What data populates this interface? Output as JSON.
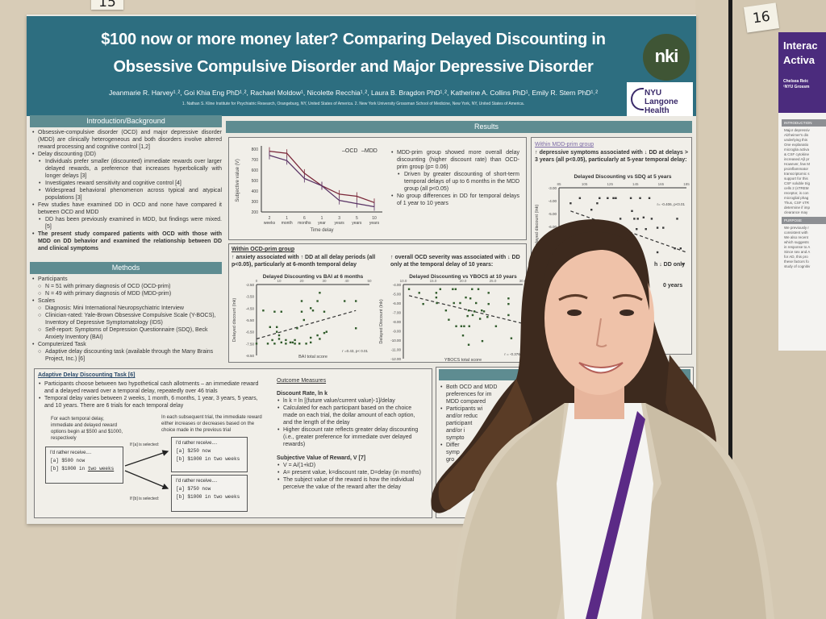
{
  "wall": {
    "tag_left": "15",
    "tag_right": "16"
  },
  "poster": {
    "title_line1": "$100 now or more money later? Comparing Delayed Discounting in",
    "title_line2": "Obsessive Compulsive Disorder and Major Depressive Disorder",
    "authors": "Jeanmarie R. Harvey¹˒², Goi Khia Eng PhD¹˒², Rachael Moldow¹, Nicolette Recchia¹˒², Laura B. Bragdon PhD¹˒², Katherine A. Collins PhD¹, Emily R. Stern PhD¹˒²",
    "affiliations": "1. Nathan S. Kline Institute for Psychiatric Research, Orangeburg, NY, United States of America. 2. New York University Grossman School of Medicine, New York, NY, United States of America.",
    "logo_nki": "nki",
    "logo_nyu": "NYU Langone Health",
    "intro": {
      "header": "Introduction/Background",
      "items": [
        {
          "l": 1,
          "t": "Obsessive-compulsive disorder (OCD) and major depressive disorder (MDD) are clinically heterogeneous and both disorders involve altered reward processing and cognitive control [1,2]"
        },
        {
          "l": 1,
          "t": "Delay discounting (DD)"
        },
        {
          "l": 2,
          "t": "Individuals prefer smaller (discounted) immediate rewards over larger delayed rewards, a preference that increases hyperbolically with longer delays [3]"
        },
        {
          "l": 2,
          "t": "Investigates reward sensitivity and cognitive control [4]"
        },
        {
          "l": 2,
          "t": "Widespread behavioral phenomenon across typical and atypical populations [3]"
        },
        {
          "l": 1,
          "t": "Few studies have examined DD in OCD and none have compared it between OCD and MDD"
        },
        {
          "l": 2,
          "t": "DD has been previously examined in MDD, but findings were mixed. [5]"
        },
        {
          "l": 1,
          "b": true,
          "t": "The present study compared patients with OCD with those with MDD on DD behavior and examined the relationship between DD and clinical symptoms"
        }
      ]
    },
    "methods": {
      "header": "Methods",
      "items": [
        {
          "l": 1,
          "t": "Participants"
        },
        {
          "l": 3,
          "t": "N = 51 with primary diagnosis of OCD (OCD-prim)"
        },
        {
          "l": 3,
          "t": "N = 49 with primary diagnosis of MDD (MDD-prim)"
        },
        {
          "l": 1,
          "t": "Scales"
        },
        {
          "l": 3,
          "t": "Diagnosis: Mini International Neuropsychiatric Interview"
        },
        {
          "l": 3,
          "t": "Clinician-rated: Yale-Brown Obsessive Compulsive Scale (Y-BOCS), Inventory of Depressive Symptomatology (IDS)"
        },
        {
          "l": 3,
          "t": "Self-report: Symptoms of Depression Questionnaire (SDQ), Beck Anxiety Inventory (BAI)"
        },
        {
          "l": 1,
          "t": "Computerized Task"
        },
        {
          "l": 3,
          "t": "Adaptive delay discounting task (available through the Many Brains Project, Inc.) [6]"
        }
      ]
    },
    "results": {
      "header": "Results",
      "summary": [
        {
          "l": 1,
          "t": "MDD-prim group showed more overall delay discounting (higher discount rate) than OCD-prim group (p= 0.06)"
        },
        {
          "l": 2,
          "t": "Driven by greater discounting of short-term temporal delays of up to 6 months in the MDD group (all p<0.05)"
        },
        {
          "l": 1,
          "t": "No group differences in DD for temporal delays of 1 year to 10 years"
        }
      ],
      "ocd_heading": "Within OCD-prim group",
      "ocd_left": "↑ anxiety associated with ↑ DD at all delay periods (all p<0.05), particularly at 6-month temporal delay",
      "ocd_right": "↑ overall OCD severity was associated with ↓ DD only at the temporal delay of 10 years:",
      "mdd_heading": "Within MDD-prim group",
      "mdd_text": "↑ depressive symptoms associated with ↓ DD at delays > 3 years (all p<0.05), particularly at 5-year temporal delay:",
      "mdd_fragment1": "h ↓ DD only",
      "mdd_fragment2": "0 years"
    },
    "task": {
      "heading": "Adaptive Delay Discounting Task [6]",
      "bullets": [
        {
          "l": 1,
          "t": "Participants choose between two hypothetical cash allotments – an immediate reward and a delayed reward over a temporal delay, repeatedly over 46 trials"
        },
        {
          "l": 1,
          "t": "Temporal delay varies between 2 weeks, 1 month, 6 months, 1 year, 3 years, 5 years, and 10 years. There are 6 trials for each temporal delay"
        }
      ],
      "note_left": "For each temporal delay, immediate and delayed reward options begin at $500 and $1000, respectively",
      "note_right": "In each subsequent trial, the immediate reward either increases or decreases based on the choice made in the previous trial",
      "if_a": "If [a] is selected:",
      "if_b": "If [b] is selected:",
      "prompt": "I'd rather receive....",
      "box1": {
        "a": "[a] $500 now",
        "b_pre": "[b] $1000 in ",
        "b_u": "two weeks"
      },
      "box2": {
        "a": "[a] $250 now",
        "b": "[b] $1000 in two weeks"
      },
      "box3": {
        "a": "[a] $750 now",
        "b": "[b] $1000 in two weeks"
      },
      "outcome_heading": "Outcome Measures",
      "dr_heading": "Discount Rate, ln k",
      "dr_items": [
        {
          "l": 1,
          "t": "ln k = ln [(future value/current value)-1]/delay"
        },
        {
          "l": 1,
          "t": "Calculated for each participant based on the choice made on each trial, the dollar amount of each option, and the length of the delay"
        },
        {
          "l": 1,
          "t": "Higher discount rate reflects greater delay discounting (i.e., greater preference for immediate over delayed rewards)"
        }
      ],
      "sv_heading": "Subjective Value of Reward, V [7]",
      "sv_items": [
        {
          "l": 1,
          "t": "V = A/(1+kD)"
        },
        {
          "l": 1,
          "t": "A= present value, k=discount rate, D=delay (in months)"
        },
        {
          "l": 1,
          "t": "The subject value of the reward is how the individual perceive the value of the reward after the delay"
        }
      ]
    },
    "conclusions_visible": [
      {
        "l": 1,
        "t": "Both OCD and MDD"
      },
      {
        "l": 0,
        "t": "preferences for im"
      },
      {
        "l": 0,
        "t": "MDD compared"
      },
      {
        "l": 1,
        "t": "Participants wi"
      },
      {
        "l": 0,
        "t": "and/or reduc"
      },
      {
        "l": 0,
        "t": "participant"
      },
      {
        "l": 0,
        "t": "and/or i"
      },
      {
        "l": 0,
        "t": "sympto"
      },
      {
        "l": 1,
        "t": "Differ"
      },
      {
        "l": 0,
        "t": "symp"
      },
      {
        "l": 0,
        "t": "gro"
      }
    ]
  },
  "neighbor_poster": {
    "title1": "Interac",
    "title2": "Activa",
    "author": "Chelsea Reic",
    "affil": "¹NYU Grossm",
    "sec1": "INTRODUCTION",
    "sec2": "PURPOSE",
    "lines1": [
      "Major depressiv",
      "Alzheimer's dis",
      "underlying this",
      "One explanatio",
      "microglia activa",
      "& CSF cytokine",
      "increased Aβ pr",
      "However, few M",
      "proinflammator",
      "transcriptomic s",
      "support for this",
      "CSF soluble trig",
      "cells 2 (sTREM",
      "receptor, is con",
      "microglial phag",
      "Thus, CSF sTR",
      "determine if imp",
      "clearance may"
    ],
    "lines2": [
      "We previously r",
      "consistent with",
      "We also recent",
      "which suggests",
      "in response to A",
      "Since sex and A",
      "for AD, this pro",
      "these factors fo",
      "study of cognitiv"
    ]
  },
  "chart_data": [
    {
      "type": "line",
      "title": "",
      "xlabel": "Time delay",
      "ylabel": "Subjective value (V)",
      "categories": [
        "2 weeks",
        "1 month",
        "6 months",
        "1 year",
        "3 years",
        "5 years",
        "10 years"
      ],
      "ylim": [
        200,
        800
      ],
      "yticks": [
        200,
        300,
        400,
        500,
        600,
        700,
        800
      ],
      "legend": "top-right",
      "series": [
        {
          "name": "OCD",
          "color": "#7a2638",
          "values": [
            780,
            760,
            570,
            450,
            370,
            350,
            290
          ]
        },
        {
          "name": "MDD",
          "color": "#5b3566",
          "values": [
            740,
            690,
            520,
            450,
            310,
            280,
            250
          ]
        }
      ]
    },
    {
      "type": "scatter",
      "title": "Delayed Discounting vs BAI at 6 months",
      "xlabel": "BAI total score",
      "ylabel": "Delayed discount (lnk)",
      "xlim": [
        0,
        50
      ],
      "ylim": [
        -8.5,
        -2.5
      ],
      "xticks": [
        0,
        10,
        20,
        30,
        40,
        50
      ],
      "yticks": [
        "-2.50",
        "-3.50",
        "-4.50",
        "-5.50",
        "-6.50",
        "-7.50",
        "-8.50"
      ],
      "color": "#2f5a2a",
      "annotation": "r =0.43, p< 0.01",
      "trend": [
        [
          0,
          -7.1
        ],
        [
          44,
          -4.7
        ]
      ],
      "points": [
        [
          0,
          -7.5
        ],
        [
          3,
          -4.7
        ],
        [
          5,
          -7.5
        ],
        [
          6,
          -6.1
        ],
        [
          7,
          -7.2
        ],
        [
          8,
          -7.5
        ],
        [
          8,
          -4.8
        ],
        [
          9,
          -6.1
        ],
        [
          9,
          -6.5
        ],
        [
          10,
          -7.1
        ],
        [
          10,
          -6.8
        ],
        [
          11,
          -7.4
        ],
        [
          11,
          -4.8
        ],
        [
          13,
          -7.2
        ],
        [
          13,
          -7.5
        ],
        [
          15,
          -7.4
        ],
        [
          16,
          -7.4
        ],
        [
          17,
          -7.2
        ],
        [
          17,
          -7.5
        ],
        [
          18,
          -6.2
        ],
        [
          19,
          -7.5
        ],
        [
          20,
          -4.8
        ],
        [
          20,
          -3.9
        ],
        [
          21,
          -5.5
        ],
        [
          22,
          -7.5
        ],
        [
          24,
          -7.4
        ],
        [
          24,
          -7.0
        ],
        [
          24,
          -4.5
        ],
        [
          25,
          -4.7
        ],
        [
          27,
          -6.8
        ],
        [
          27,
          -3.9
        ],
        [
          28,
          -7.1
        ],
        [
          28,
          -3.2
        ],
        [
          30,
          -4.8
        ],
        [
          30,
          -6.6
        ],
        [
          31,
          -6.5
        ],
        [
          39,
          -3.9
        ],
        [
          44,
          -3.9
        ],
        [
          44,
          -6.2
        ]
      ]
    },
    {
      "type": "scatter",
      "title": "Delayed Discounting vs YBOCS at 10 years",
      "xlabel": "YBOCS total score",
      "ylabel": "Delayed Discount (lnk)",
      "xlim": [
        10,
        31
      ],
      "ylim": [
        -12,
        -4
      ],
      "xticks": [
        "10.0",
        "15.0",
        "20.0",
        "25.0",
        "30.0"
      ],
      "yticks": [
        "-4.00",
        "-5.00",
        "-6.00",
        "-7.00",
        "-8.00",
        "-9.00",
        "-10.00",
        "-11.00",
        "-12.00"
      ],
      "color": "#2f5a2a",
      "annotation": "r = -0.376,",
      "trend": [
        [
          11,
          -5.2
        ],
        [
          31,
          -8.2
        ]
      ],
      "points": [
        [
          11,
          -4.5
        ],
        [
          12.8,
          -4.9
        ],
        [
          13.5,
          -6.1
        ],
        [
          15.8,
          -4.9
        ],
        [
          15.8,
          -5.4
        ],
        [
          15.9,
          -6
        ],
        [
          16.5,
          -4.5
        ],
        [
          17.5,
          -6.8
        ],
        [
          18,
          -7.8
        ],
        [
          18.7,
          -4.5
        ],
        [
          18.9,
          -6
        ],
        [
          19.2,
          -4.5
        ],
        [
          19.3,
          -8.5
        ],
        [
          20,
          -6
        ],
        [
          20.2,
          -8.5
        ],
        [
          20.5,
          -9.5
        ],
        [
          20.7,
          -8.5
        ],
        [
          21,
          -5.4
        ],
        [
          21.3,
          -7.4
        ],
        [
          21.5,
          -6.8
        ],
        [
          21.5,
          -10.5
        ],
        [
          21.6,
          -8.5
        ],
        [
          21.8,
          -5.5
        ],
        [
          22.1,
          -4.5
        ],
        [
          22.2,
          -7.3
        ],
        [
          22.5,
          -6.9
        ],
        [
          22.8,
          -6
        ],
        [
          23.2,
          -4.5
        ],
        [
          23.5,
          -7.7
        ],
        [
          23.8,
          -6.8
        ],
        [
          23.9,
          -10.1
        ],
        [
          24.2,
          -6.9
        ],
        [
          24.8,
          -7.5
        ],
        [
          25,
          -6.1
        ],
        [
          25,
          -4.9
        ],
        [
          26.3,
          -8.5
        ],
        [
          28.5,
          -5.5
        ],
        [
          28.5,
          -6.1
        ],
        [
          28.5,
          -7.3
        ],
        [
          29,
          -9.8
        ],
        [
          31,
          -8.8
        ]
      ]
    },
    {
      "type": "scatter",
      "title": "Delayed Discounting vs SDQ at 5 years",
      "xlabel": "",
      "ylabel": "Delayed discount (lnk)",
      "xlim": [
        85,
        195
      ],
      "ylim": [
        -9,
        -3
      ],
      "xticks": [
        "85",
        "105",
        "125",
        "145",
        "165",
        "185"
      ],
      "yticks": [
        "-3.00",
        "-4.00",
        "-5.00",
        "-6.00",
        "-7.00",
        "-8.00",
        "-9.00"
      ],
      "color": "#3a3a3a",
      "annotation": "r= -0.406, p<0.01",
      "trend": [
        [
          95,
          -4.8
        ],
        [
          195,
          -8.0
        ]
      ],
      "points": [
        [
          95,
          -4.2
        ],
        [
          103,
          -3.8
        ],
        [
          113,
          -4.7
        ],
        [
          118,
          -4.2
        ],
        [
          120,
          -3.8
        ],
        [
          121,
          -6.1
        ],
        [
          127,
          -3.8
        ],
        [
          132,
          -3.8
        ],
        [
          134,
          -3.8
        ],
        [
          138,
          -5.4
        ],
        [
          140,
          -6.2
        ],
        [
          143,
          -7.0
        ],
        [
          147,
          -3.8
        ],
        [
          148,
          -4.8
        ],
        [
          150,
          -5.4
        ],
        [
          152,
          -6.2
        ],
        [
          153,
          -5.4
        ],
        [
          155,
          -3.8
        ],
        [
          158,
          -5.3
        ],
        [
          160,
          -6.2
        ],
        [
          163,
          -3.8
        ],
        [
          165,
          -5.4
        ],
        [
          170,
          -6.1
        ],
        [
          175,
          -6.1
        ],
        [
          170,
          -8.0
        ],
        [
          185,
          -7.7
        ],
        [
          187,
          -5.4
        ],
        [
          190,
          -7.7
        ],
        [
          192,
          -8.9
        ]
      ]
    }
  ]
}
